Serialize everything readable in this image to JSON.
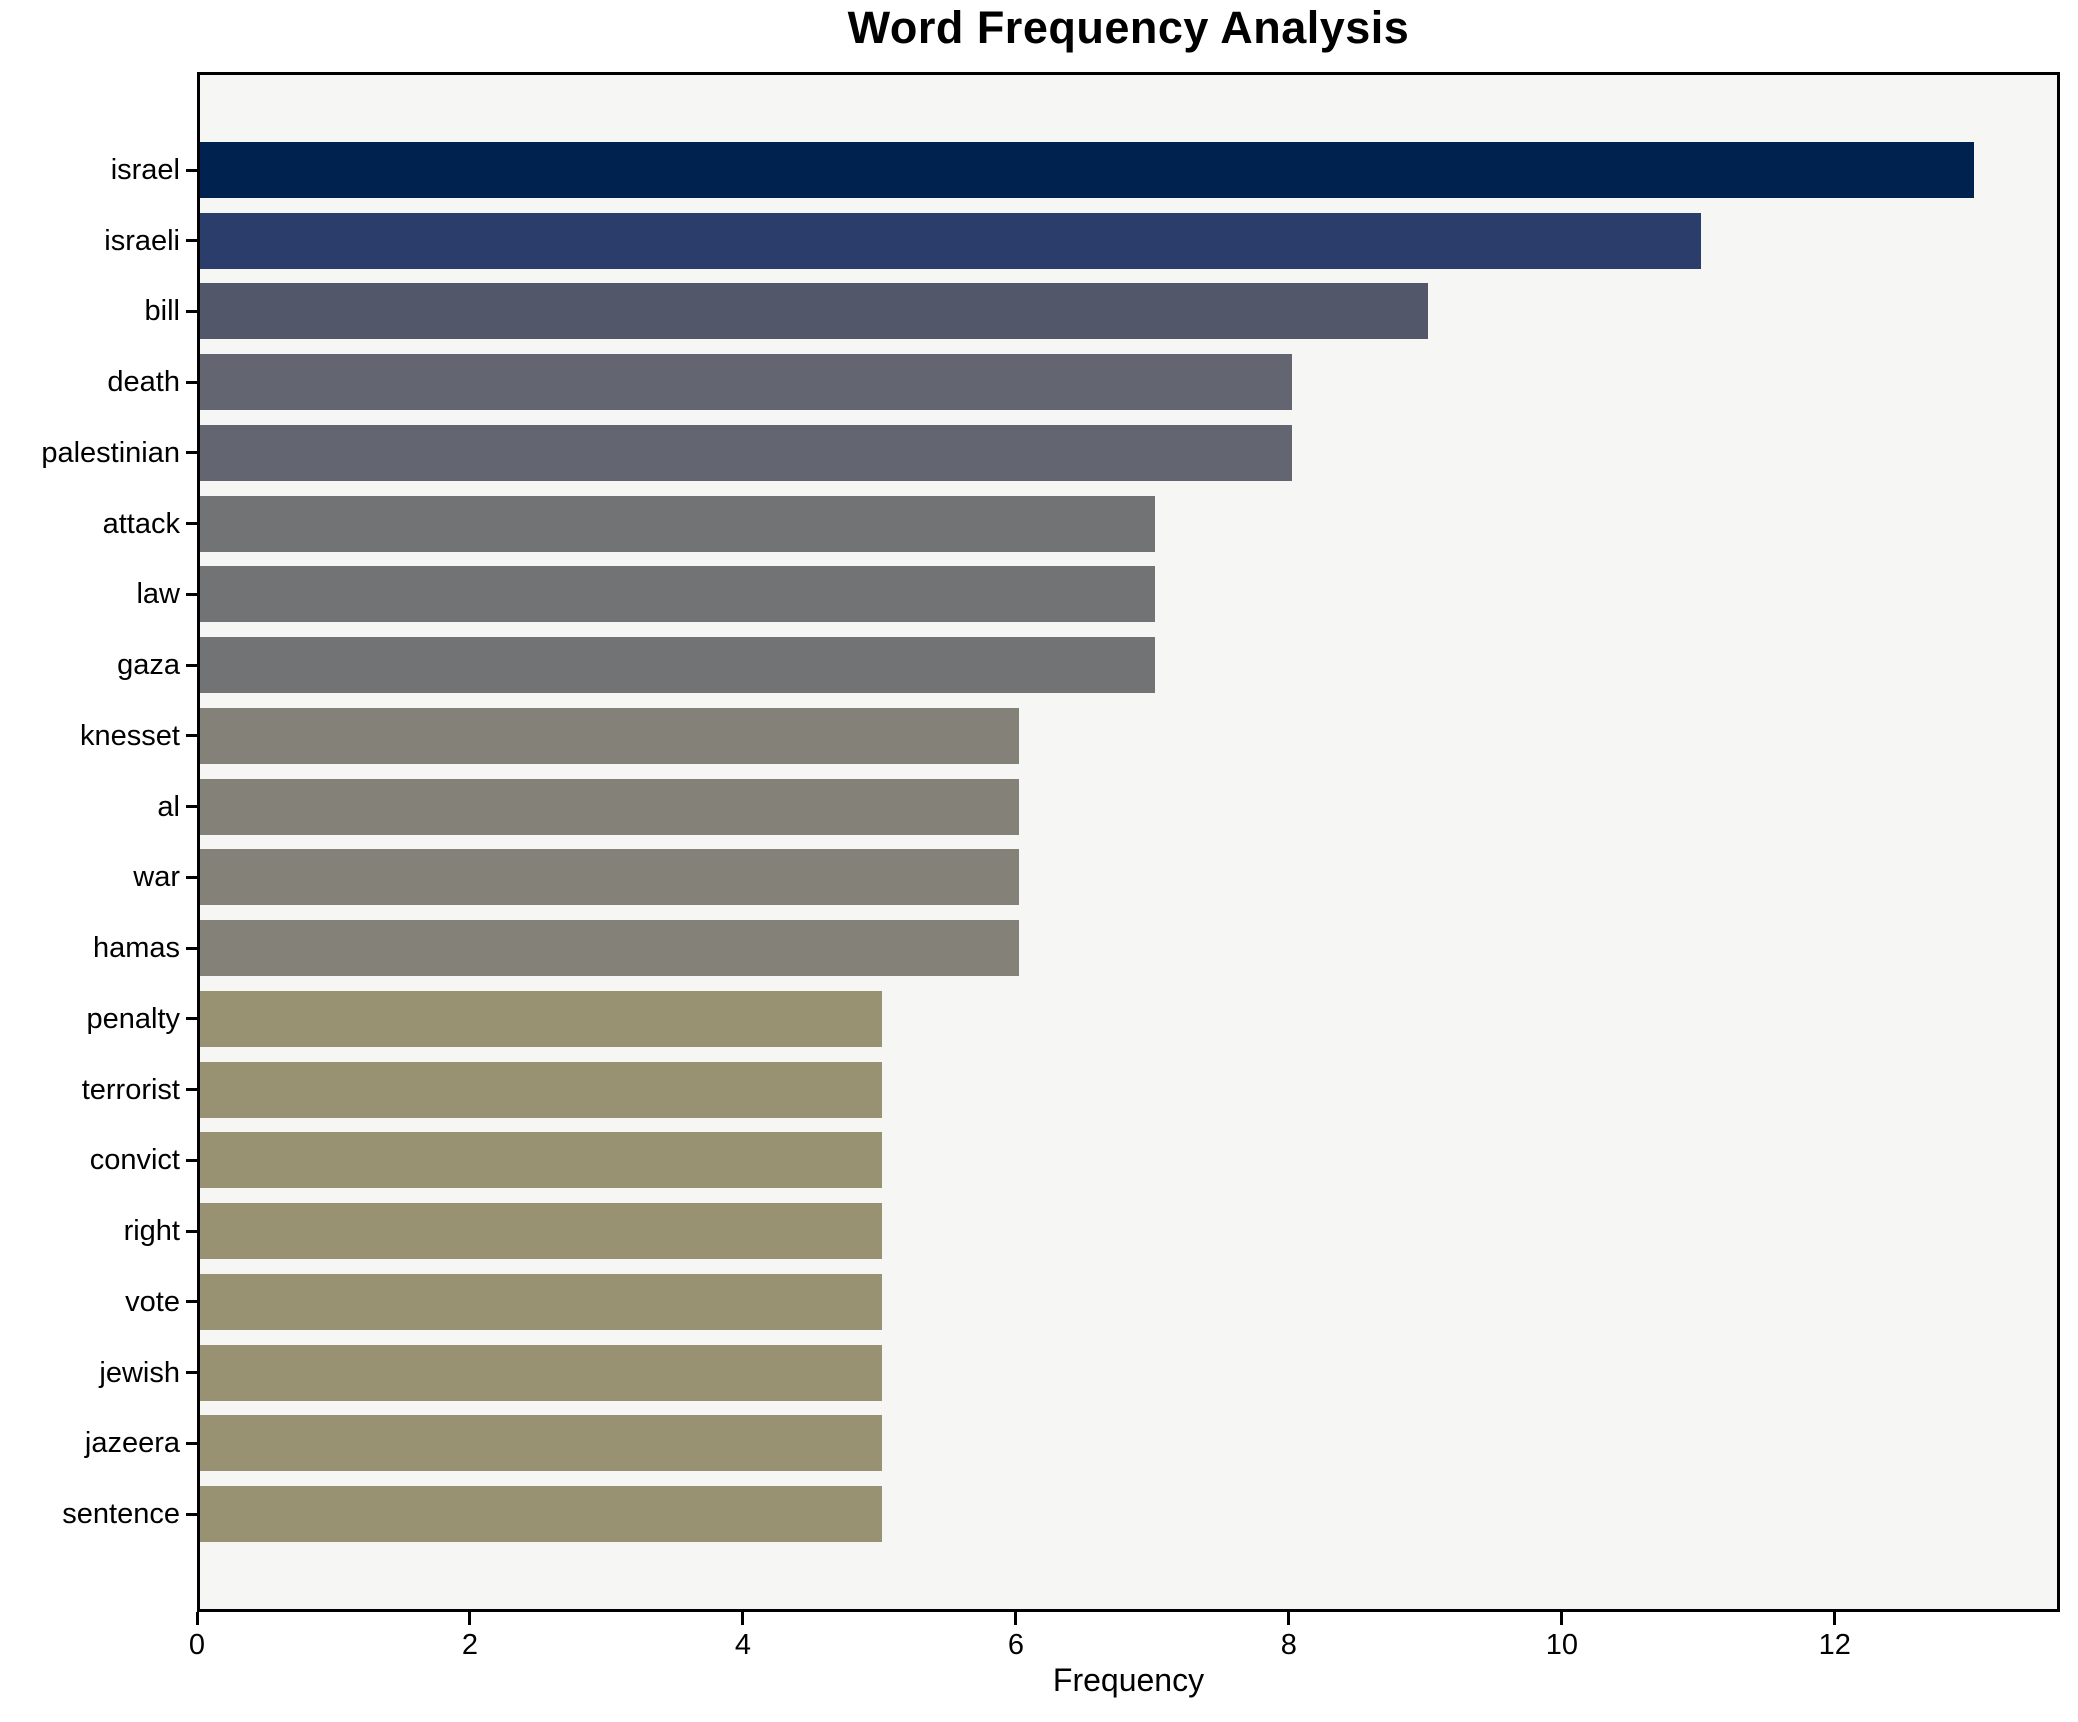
{
  "chart_data": {
    "type": "bar",
    "orientation": "horizontal",
    "title": "Word Frequency Analysis",
    "xlabel": "Frequency",
    "ylabel": "",
    "categories": [
      "israel",
      "israeli",
      "bill",
      "death",
      "palestinian",
      "attack",
      "law",
      "gaza",
      "knesset",
      "al",
      "war",
      "hamas",
      "penalty",
      "terrorist",
      "convict",
      "right",
      "vote",
      "jewish",
      "jazeera",
      "sentence"
    ],
    "values": [
      13,
      11,
      9,
      8,
      8,
      7,
      7,
      7,
      6,
      6,
      6,
      6,
      5,
      5,
      5,
      5,
      5,
      5,
      5,
      5
    ],
    "bar_colors": [
      "#00224e",
      "#2b3d6a",
      "#525869",
      "#636571",
      "#636571",
      "#727375",
      "#727375",
      "#727375",
      "#838178",
      "#838178",
      "#838178",
      "#838178",
      "#999272",
      "#999272",
      "#999272",
      "#999272",
      "#999272",
      "#999272",
      "#999272",
      "#999272"
    ],
    "xlim": [
      0,
      13.65
    ],
    "x_ticks": [
      0,
      2,
      4,
      6,
      8,
      10,
      12
    ],
    "grid": false,
    "legend": null,
    "plot_background": "#f6f6f5",
    "figure_background": "#ffffff",
    "spine_color": "#000000",
    "text_color": "#000000"
  }
}
